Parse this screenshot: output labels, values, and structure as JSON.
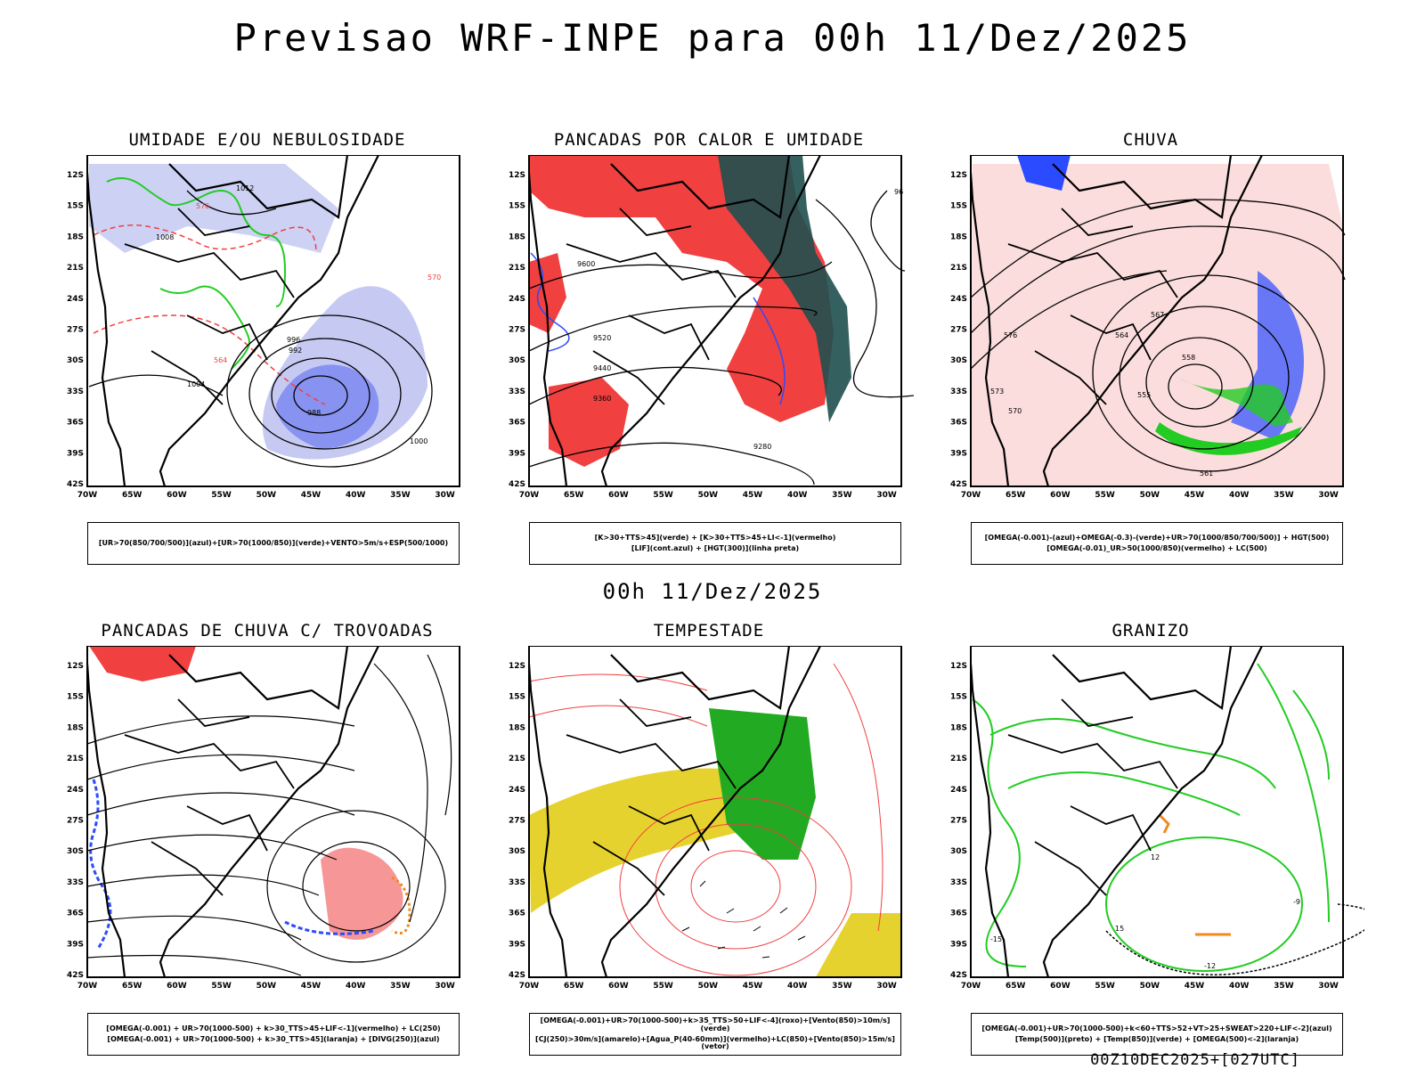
{
  "title": "Previsao WRF-INPE  para 00h 11/Dez/2025",
  "mid_title": "00h 11/Dez/2025",
  "footer": "00Z10DEC2025+[027UTC]",
  "lat_labels": [
    "12S",
    "15S",
    "18S",
    "21S",
    "24S",
    "27S",
    "30S",
    "33S",
    "36S",
    "39S",
    "42S"
  ],
  "lon_labels": [
    "70W",
    "65W",
    "60W",
    "55W",
    "50W",
    "45W",
    "40W",
    "35W",
    "30W"
  ],
  "panels": [
    {
      "title": "UMIDADE E/OU NEBULOSIDADE",
      "legend": [
        "[UR>70(850/700/500)](azul)+[UR>70(1000/850)](verde)+VENTO>5m/s+ESP(500/1000)"
      ],
      "labels": [
        "1012",
        "1008",
        "1004",
        "1000",
        "996",
        "992",
        "988",
        "570",
        "576",
        "564"
      ]
    },
    {
      "title": "PANCADAS POR CALOR E UMIDADE",
      "legend": [
        "[K>30+TTS>45](verde) + [K>30+TTS>45+LI<-1](vermelho)",
        "[LIF](cont.azul) + [HGT(300)](linha preta)"
      ],
      "labels": [
        "9600",
        "9520",
        "9440",
        "9360",
        "9280",
        "96"
      ]
    },
    {
      "title": "CHUVA",
      "legend": [
        "[OMEGA(-0.001)-(azul)+OMEGA(-0.3)-(verde)+UR>70(1000/850/700/500)] + HGT(500)",
        "[OMEGA(-0.01)_UR>50(1000/850)(vermelho) + LC(500)"
      ],
      "labels": [
        "576",
        "573",
        "570",
        "567",
        "564",
        "561",
        "558",
        "555"
      ]
    },
    {
      "title": "PANCADAS DE CHUVA C/ TROVOADAS",
      "legend": [
        "[OMEGA(-0.001) + UR>70(1000-500) + k>30_TTS>45+LIF<-1](vermelho) + LC(250)",
        "[OMEGA(-0.001) + UR>70(1000-500) + k>30_TTS>45](laranja) + [DIVG(250)](azul)"
      ],
      "labels": []
    },
    {
      "title": "TEMPESTADE",
      "legend": [
        "[OMEGA(-0.001)+UR>70(1000-500)+k>35_TTS>50+LIF<-4](roxo)+[Vento(850)>10m/s](verde)",
        "[CJ(250)>30m/s](amarelo)+[Agua_P(40-60mm)](vermelho)+LC(850)+[Vento(850)>15m/s](vetor)"
      ],
      "labels": []
    },
    {
      "title": "GRANIZO",
      "legend": [
        "[OMEGA(-0.001)+UR>70(1000-500)+k<60+TTS>52+VT>25+SWEAT>220+LIF<-2](azul)",
        "[Temp(500)](preto) + [Temp(850)](verde) + [OMEGA(500)<-2](laranja)"
      ],
      "labels": [
        "12",
        "15",
        "-12",
        "-15",
        "-9"
      ]
    }
  ],
  "colors": {
    "blue": "#2a4bff",
    "lavender": "#b8bdf0",
    "green": "#22cc22",
    "red": "#f04040",
    "darkteal": "#1f4f4f",
    "yellow": "#e6d22e",
    "orange": "#f08a20",
    "black": "#000000"
  }
}
